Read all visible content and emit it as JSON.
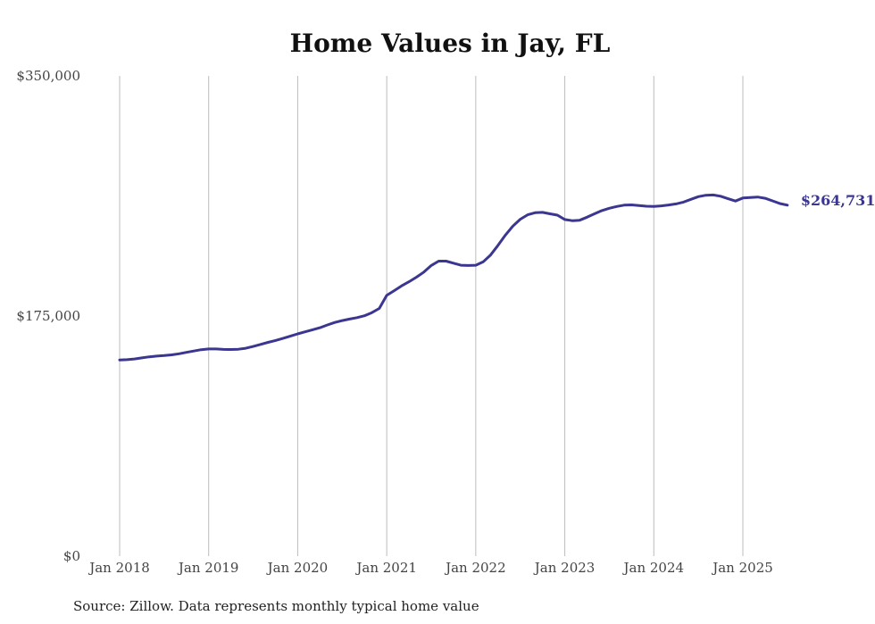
{
  "chart_data": {
    "type": "line",
    "title": "Home Values in Jay, FL",
    "source": "Source: Zillow. Data represents monthly typical home value",
    "xlabel": "",
    "ylabel": "",
    "ylim": [
      0,
      350000
    ],
    "y_ticks": [
      {
        "value": 0,
        "label": "$0"
      },
      {
        "value": 175000,
        "label": "$175,000"
      },
      {
        "value": 350000,
        "label": "$350,000"
      }
    ],
    "x_ticks": [
      {
        "value": "2018-01",
        "label": "Jan 2018"
      },
      {
        "value": "2019-01",
        "label": "Jan 2019"
      },
      {
        "value": "2020-01",
        "label": "Jan 2020"
      },
      {
        "value": "2021-01",
        "label": "Jan 2021"
      },
      {
        "value": "2022-01",
        "label": "Jan 2022"
      },
      {
        "value": "2023-01",
        "label": "Jan 2023"
      },
      {
        "value": "2024-01",
        "label": "Jan 2024"
      },
      {
        "value": "2025-01",
        "label": "Jan 2025"
      }
    ],
    "grid": {
      "vertical": true,
      "horizontal": false
    },
    "series": [
      {
        "color": "#3b3690",
        "end_label": "$264,731",
        "points": [
          [
            "2018-01",
            143000
          ],
          [
            "2018-02",
            143200
          ],
          [
            "2018-03",
            143700
          ],
          [
            "2018-04",
            144500
          ],
          [
            "2018-05",
            145300
          ],
          [
            "2018-06",
            145800
          ],
          [
            "2018-07",
            146200
          ],
          [
            "2018-08",
            146700
          ],
          [
            "2018-09",
            147500
          ],
          [
            "2018-10",
            148500
          ],
          [
            "2018-11",
            149500
          ],
          [
            "2018-12",
            150500
          ],
          [
            "2019-01",
            151000
          ],
          [
            "2019-02",
            151000
          ],
          [
            "2019-03",
            150700
          ],
          [
            "2019-04",
            150600
          ],
          [
            "2019-05",
            150800
          ],
          [
            "2019-06",
            151500
          ],
          [
            "2019-07",
            152800
          ],
          [
            "2019-08",
            154300
          ],
          [
            "2019-09",
            155800
          ],
          [
            "2019-10",
            157200
          ],
          [
            "2019-11",
            158700
          ],
          [
            "2019-12",
            160300
          ],
          [
            "2020-01",
            162000
          ],
          [
            "2020-02",
            163500
          ],
          [
            "2020-03",
            165000
          ],
          [
            "2020-04",
            166500
          ],
          [
            "2020-05",
            168500
          ],
          [
            "2020-06",
            170300
          ],
          [
            "2020-07",
            171700
          ],
          [
            "2020-08",
            172800
          ],
          [
            "2020-09",
            173800
          ],
          [
            "2020-10",
            175200
          ],
          [
            "2020-11",
            177500
          ],
          [
            "2020-12",
            180500
          ],
          [
            "2021-01",
            190000
          ],
          [
            "2021-02",
            193500
          ],
          [
            "2021-03",
            197000
          ],
          [
            "2021-04",
            200000
          ],
          [
            "2021-05",
            203300
          ],
          [
            "2021-06",
            207000
          ],
          [
            "2021-07",
            211800
          ],
          [
            "2021-08",
            215000
          ],
          [
            "2021-09",
            215000
          ],
          [
            "2021-10",
            213500
          ],
          [
            "2021-11",
            212000
          ],
          [
            "2021-12",
            211800
          ],
          [
            "2022-01",
            212000
          ],
          [
            "2022-02",
            214500
          ],
          [
            "2022-03",
            219500
          ],
          [
            "2022-04",
            226500
          ],
          [
            "2022-05",
            234000
          ],
          [
            "2022-06",
            240500
          ],
          [
            "2022-07",
            245500
          ],
          [
            "2022-08",
            248800
          ],
          [
            "2022-09",
            250300
          ],
          [
            "2022-10",
            250500
          ],
          [
            "2022-11",
            249500
          ],
          [
            "2022-12",
            248500
          ],
          [
            "2023-01",
            245300
          ],
          [
            "2023-02",
            244500
          ],
          [
            "2023-03",
            244800
          ],
          [
            "2023-04",
            247000
          ],
          [
            "2023-05",
            249500
          ],
          [
            "2023-06",
            251800
          ],
          [
            "2023-07",
            253500
          ],
          [
            "2023-08",
            254800
          ],
          [
            "2023-09",
            255800
          ],
          [
            "2023-10",
            256000
          ],
          [
            "2023-11",
            255500
          ],
          [
            "2023-12",
            255000
          ],
          [
            "2024-01",
            254900
          ],
          [
            "2024-02",
            255300
          ],
          [
            "2024-03",
            255900
          ],
          [
            "2024-04",
            256700
          ],
          [
            "2024-05",
            258000
          ],
          [
            "2024-06",
            260000
          ],
          [
            "2024-07",
            262000
          ],
          [
            "2024-08",
            263000
          ],
          [
            "2024-09",
            263200
          ],
          [
            "2024-10",
            262300
          ],
          [
            "2024-11",
            260500
          ],
          [
            "2024-12",
            258800
          ],
          [
            "2025-01",
            261000
          ],
          [
            "2025-02",
            261300
          ],
          [
            "2025-03",
            261700
          ],
          [
            "2025-04",
            260800
          ],
          [
            "2025-05",
            258900
          ],
          [
            "2025-06",
            257000
          ],
          [
            "2025-07",
            255800
          ],
          [
            "2025-08",
            264731
          ]
        ]
      }
    ]
  }
}
